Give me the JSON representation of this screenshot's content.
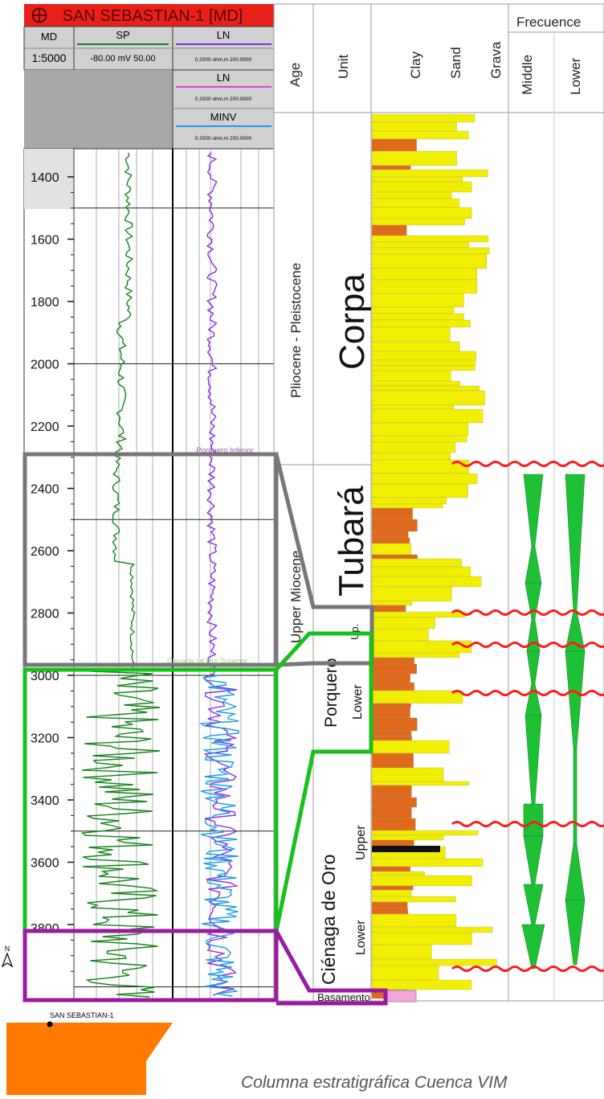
{
  "log_header": {
    "well_title": "SAN SEBASTIAN-1 [MD]",
    "md_label": "MD",
    "scale": "1:5000",
    "sp_label": "SP",
    "sp_range": "-80.00 mV 50.00",
    "ln1_label": "LN",
    "ln1_range": "0.2000 ohm.m 200.0000",
    "ln2_label": "LN",
    "ln2_range": "0.2000 ohm.m 200.0000",
    "minv_label": "MINV",
    "minv_range": "0.2000 ohm.m 200.0000"
  },
  "depth_ticks": [
    "1400",
    "1600",
    "1800",
    "2000",
    "2200",
    "2400",
    "2600",
    "2800",
    "3000",
    "3200",
    "3400",
    "3600",
    "3800"
  ],
  "depth_values": [
    1400,
    1600,
    1800,
    2000,
    2200,
    2400,
    2600,
    2800,
    3000,
    3200,
    3400,
    3600,
    3800
  ],
  "formation_markers": {
    "porquero_inferior": "Porquero Inferior",
    "cienaga_de_oro_superior": "Ciénaga de Oro Superior"
  },
  "strat_headers": {
    "age": "Age",
    "unit": "Unit",
    "clay": "Clay",
    "sand": "Sand",
    "grava": "Grava",
    "frequence": "Frecuence",
    "middle": "Middle",
    "lower": "Lower"
  },
  "ages": {
    "pliocene": "Pliocene - Pleistocene",
    "miocene": "Upper Miocene"
  },
  "units": {
    "corpa": "Corpa",
    "tubara": "Tubará",
    "up": "Up.",
    "porquero": "Porquero",
    "porquero_lower": "Lower",
    "cienaga": "Ciénaga de Oro",
    "cienaga_upper": "Upper",
    "cienaga_lower": "Lower",
    "basamento": "Basamento"
  },
  "map": {
    "north": "N",
    "well_label": "SAN SEBASTIAN-1",
    "fill_color": "#ff7a00"
  },
  "colors": {
    "title_red": "#e8201a",
    "sp_green": "#16821d",
    "ln_purple": "#8a2be2",
    "minv_blue": "#1a9be8",
    "sand_yellow": "#f2ee00",
    "clay_orange": "#e06a1c",
    "box_gray": "#777777",
    "box_green": "#17c11a",
    "box_purple": "#9a1aa0",
    "unconformity_red": "#ff1a1a"
  },
  "caption": "Columna estratigráfica Cuenca VIM"
}
